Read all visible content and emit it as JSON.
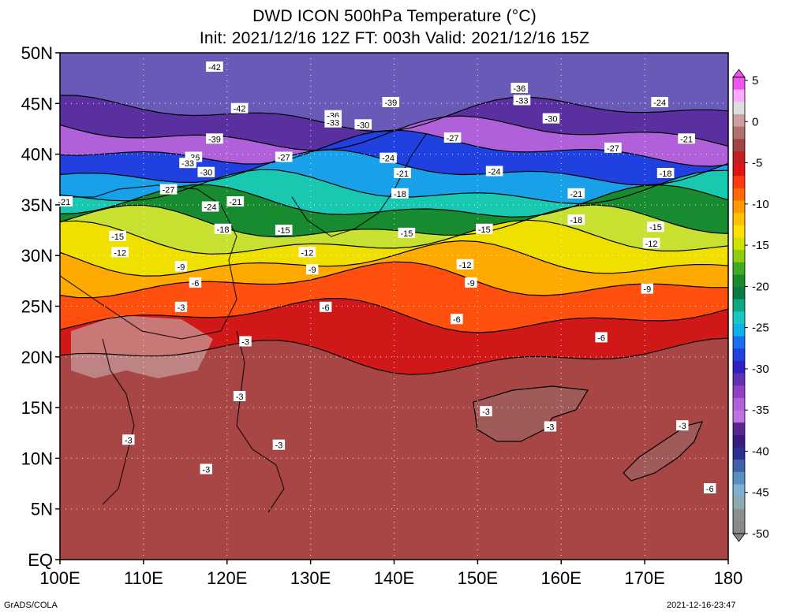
{
  "title": {
    "line1": "DWD ICON 500hPa Temperature (°C)",
    "line2": "Init: 2021/12/16 12Z  FT: 003h  Valid: 2021/12/16 15Z"
  },
  "footer": {
    "left": "GrADS/COLA",
    "right": "2021-12-16-23:47"
  },
  "map": {
    "lon_range": [
      100,
      180
    ],
    "lat_range": [
      0,
      50
    ],
    "lat_ticks": [
      {
        "lat": 50,
        "label": "50N"
      },
      {
        "lat": 45,
        "label": "45N"
      },
      {
        "lat": 40,
        "label": "40N"
      },
      {
        "lat": 35,
        "label": "35N"
      },
      {
        "lat": 30,
        "label": "30N"
      },
      {
        "lat": 25,
        "label": "25N"
      },
      {
        "lat": 20,
        "label": "20N"
      },
      {
        "lat": 15,
        "label": "15N"
      },
      {
        "lat": 10,
        "label": "10N"
      },
      {
        "lat": 5,
        "label": "5N"
      },
      {
        "lat": 0,
        "label": "EQ"
      }
    ],
    "lon_ticks": [
      {
        "lon": 100,
        "label": "100E"
      },
      {
        "lon": 110,
        "label": "110E"
      },
      {
        "lon": 120,
        "label": "120E"
      },
      {
        "lon": 130,
        "label": "130E"
      },
      {
        "lon": 140,
        "label": "140E"
      },
      {
        "lon": 150,
        "label": "150E"
      },
      {
        "lon": 160,
        "label": "160E"
      },
      {
        "lon": 170,
        "label": "170E"
      },
      {
        "lon": 180,
        "label": "180"
      }
    ],
    "gridlines": "dotted"
  },
  "colorbar": {
    "labels": [
      "5",
      "0",
      "-5",
      "-10",
      "-15",
      "-20",
      "-25",
      "-30",
      "-35",
      "-40",
      "-45",
      "-50"
    ],
    "label_values": [
      5,
      0,
      -5,
      -10,
      -15,
      -20,
      -25,
      -30,
      -35,
      -40,
      -45,
      -50
    ],
    "colors": [
      "#ee55ee",
      "#ffaaff",
      "#dddddd",
      "#cca0a0",
      "#b07070",
      "#a04545",
      "#c02020",
      "#e01515",
      "#ff3a10",
      "#ff6a00",
      "#ff9a00",
      "#ffc000",
      "#ffe000",
      "#d0e000",
      "#90cc10",
      "#40aa20",
      "#188a28",
      "#0a7a40",
      "#10a880",
      "#18c8c0",
      "#10b0e8",
      "#1870f0",
      "#2040e0",
      "#3020c0",
      "#6030b0",
      "#9040c0",
      "#b060d8",
      "#c070e0",
      "#5a2590",
      "#3a1a80",
      "#283090",
      "#4060a8",
      "#5590c0",
      "#80b0d0",
      "#90a8b0",
      "#8a9090",
      "#888888"
    ]
  },
  "temperature_bands": [
    {
      "lat": 47,
      "temp": -45,
      "color": "#6a5ab8"
    },
    {
      "lat": 44,
      "temp": -38,
      "color": "#5a2fa0"
    },
    {
      "lat": 42,
      "temp": -35,
      "color": "#b060d8"
    },
    {
      "lat": 40.5,
      "temp": -31,
      "color": "#2040e0"
    },
    {
      "lat": 38.5,
      "temp": -27,
      "color": "#18a0e8"
    },
    {
      "lat": 36.5,
      "temp": -24,
      "color": "#18c8b0"
    },
    {
      "lat": 35,
      "temp": -20,
      "color": "#188a30"
    },
    {
      "lat": 33,
      "temp": -16,
      "color": "#c8e030"
    },
    {
      "lat": 31.5,
      "temp": -14,
      "color": "#f0e000"
    },
    {
      "lat": 29.5,
      "temp": -11,
      "color": "#ffaa00"
    },
    {
      "lat": 27.5,
      "temp": -8,
      "color": "#ff5010"
    },
    {
      "lat": 24,
      "temp": -5,
      "color": "#d01818"
    },
    {
      "lat": 20,
      "temp": -3,
      "color": "#a84545"
    },
    {
      "lat": 0,
      "temp": -3,
      "color": "#9a4040"
    }
  ],
  "contour_labels": [
    {
      "text": "-42",
      "lon": 118.5,
      "lat": 48.6
    },
    {
      "text": "-42",
      "lon": 121.5,
      "lat": 44.5
    },
    {
      "text": "-39",
      "lon": 118.5,
      "lat": 41.5
    },
    {
      "text": "-36",
      "lon": 116,
      "lat": 39.7
    },
    {
      "text": "-33",
      "lon": 115.3,
      "lat": 39.1
    },
    {
      "text": "-30",
      "lon": 117.5,
      "lat": 38.2
    },
    {
      "text": "-27",
      "lon": 113,
      "lat": 36.5
    },
    {
      "text": "-24",
      "lon": 118,
      "lat": 34.8
    },
    {
      "text": "-21",
      "lon": 100.5,
      "lat": 35.3
    },
    {
      "text": "-21",
      "lon": 121,
      "lat": 35.3
    },
    {
      "text": "-27",
      "lon": 126.8,
      "lat": 39.7
    },
    {
      "text": "-36",
      "lon": 132.7,
      "lat": 43.8
    },
    {
      "text": "-33",
      "lon": 132.7,
      "lat": 43.1
    },
    {
      "text": "-30",
      "lon": 136.3,
      "lat": 42.9
    },
    {
      "text": "-39",
      "lon": 139.6,
      "lat": 45.1
    },
    {
      "text": "-24",
      "lon": 139.3,
      "lat": 39.6
    },
    {
      "text": "-21",
      "lon": 141,
      "lat": 38.1
    },
    {
      "text": "-18",
      "lon": 140.7,
      "lat": 36.1
    },
    {
      "text": "-27",
      "lon": 147,
      "lat": 41.6
    },
    {
      "text": "-24",
      "lon": 152,
      "lat": 38.3
    },
    {
      "text": "-36",
      "lon": 155,
      "lat": 46.5
    },
    {
      "text": "-33",
      "lon": 155.3,
      "lat": 45.3
    },
    {
      "text": "-30",
      "lon": 158.8,
      "lat": 43.5
    },
    {
      "text": "-27",
      "lon": 166.2,
      "lat": 40.6
    },
    {
      "text": "-24",
      "lon": 171.8,
      "lat": 45.1
    },
    {
      "text": "-21",
      "lon": 175,
      "lat": 41.5
    },
    {
      "text": "-18",
      "lon": 172.5,
      "lat": 38.1
    },
    {
      "text": "-21",
      "lon": 161.8,
      "lat": 36.1
    },
    {
      "text": "-18",
      "lon": 161.8,
      "lat": 33.5
    },
    {
      "text": "-15",
      "lon": 171.3,
      "lat": 32.8
    },
    {
      "text": "-12",
      "lon": 170.8,
      "lat": 31.2
    },
    {
      "text": "-15",
      "lon": 150.8,
      "lat": 32.6
    },
    {
      "text": "-15",
      "lon": 141.5,
      "lat": 32.2
    },
    {
      "text": "-15",
      "lon": 126.8,
      "lat": 32.5
    },
    {
      "text": "-18",
      "lon": 119.5,
      "lat": 32.6
    },
    {
      "text": "-15",
      "lon": 106.9,
      "lat": 31.9
    },
    {
      "text": "-12",
      "lon": 107.2,
      "lat": 30.3
    },
    {
      "text": "-12",
      "lon": 129.6,
      "lat": 30.3
    },
    {
      "text": "-12",
      "lon": 148.5,
      "lat": 29.1
    },
    {
      "text": "-9",
      "lon": 114.5,
      "lat": 28.9
    },
    {
      "text": "-9",
      "lon": 130.2,
      "lat": 28.6
    },
    {
      "text": "-9",
      "lon": 149.2,
      "lat": 27.3
    },
    {
      "text": "-9",
      "lon": 170.3,
      "lat": 26.7
    },
    {
      "text": "-6",
      "lon": 116.2,
      "lat": 27.3
    },
    {
      "text": "-6",
      "lon": 131.8,
      "lat": 24.9
    },
    {
      "text": "-6",
      "lon": 147.5,
      "lat": 23.7
    },
    {
      "text": "-6",
      "lon": 164.8,
      "lat": 21.9
    },
    {
      "text": "-3",
      "lon": 114.5,
      "lat": 24.9
    },
    {
      "text": "-3",
      "lon": 122.2,
      "lat": 21.5
    },
    {
      "text": "-3",
      "lon": 121.5,
      "lat": 16.1
    },
    {
      "text": "-3",
      "lon": 108.2,
      "lat": 11.8
    },
    {
      "text": "-3",
      "lon": 126.2,
      "lat": 11.3
    },
    {
      "text": "-3",
      "lon": 117.5,
      "lat": 8.9
    },
    {
      "text": "-3",
      "lon": 151,
      "lat": 14.6
    },
    {
      "text": "-3",
      "lon": 158.7,
      "lat": 13.1
    },
    {
      "text": "-3",
      "lon": 174.5,
      "lat": 13.2
    },
    {
      "text": "-6",
      "lon": 177.8,
      "lat": 7.0
    }
  ]
}
